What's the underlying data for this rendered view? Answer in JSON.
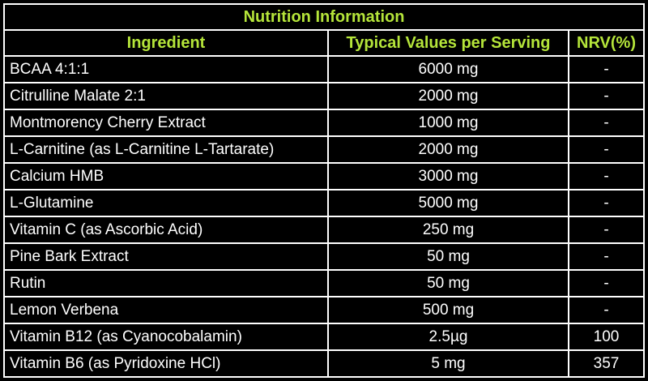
{
  "title": "Nutrition Information",
  "headers": {
    "ingredient": "Ingredient",
    "typical_values": "Typical Values per Serving",
    "nrv": "NRV(%)"
  },
  "rows": [
    {
      "ingredient": "BCAA 4:1:1",
      "value": "6000 mg",
      "nrv": "-"
    },
    {
      "ingredient": "Citrulline Malate 2:1",
      "value": "2000 mg",
      "nrv": "-"
    },
    {
      "ingredient": "Montmorency Cherry Extract",
      "value": "1000 mg",
      "nrv": "-"
    },
    {
      "ingredient": "L-Carnitine (as L-Carnitine L-Tartarate)",
      "value": "2000 mg",
      "nrv": "-"
    },
    {
      "ingredient": "Calcium HMB",
      "value": "3000 mg",
      "nrv": "-"
    },
    {
      "ingredient": "L-Glutamine",
      "value": "5000 mg",
      "nrv": "-"
    },
    {
      "ingredient": "Vitamin C (as Ascorbic Acid)",
      "value": "250 mg",
      "nrv": "-"
    },
    {
      "ingredient": "Pine Bark Extract",
      "value": "50 mg",
      "nrv": "-"
    },
    {
      "ingredient": "Rutin",
      "value": "50 mg",
      "nrv": "-"
    },
    {
      "ingredient": "Lemon Verbena",
      "value": "500 mg",
      "nrv": "-"
    },
    {
      "ingredient": "Vitamin B12 (as Cyanocobalamin)",
      "value": "2.5µg",
      "nrv": "100"
    },
    {
      "ingredient": "Vitamin B6 (as Pyridoxine HCl)",
      "value": "5 mg",
      "nrv": "357"
    }
  ],
  "colors": {
    "background": "#000000",
    "text": "#ffffff",
    "accent": "#b5e53a",
    "border": "#ffffff"
  }
}
